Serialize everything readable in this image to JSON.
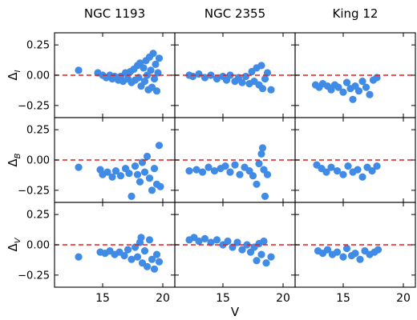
{
  "chart_data": {
    "type": "scatter",
    "layout": {
      "rows": 3,
      "cols": 3,
      "shared_x": true,
      "shared_y": true
    },
    "columns": [
      "NGC 1193",
      "NGC 2355",
      "King 12"
    ],
    "rows": [
      {
        "ylabel": "Δ_I",
        "sub": "I"
      },
      {
        "ylabel": "Δ_B",
        "sub": "B"
      },
      {
        "ylabel": "Δ_V",
        "sub": "V"
      }
    ],
    "xlabel": "V",
    "xlim": [
      11,
      21
    ],
    "ylim": [
      -0.35,
      0.35
    ],
    "xticks": [
      15,
      20
    ],
    "yticks": [
      -0.25,
      0.0,
      0.25
    ],
    "ytick_labels": [
      "−0.25",
      "0.00",
      "0.25"
    ],
    "marker_color": "#3f8be6",
    "reference_line": {
      "y": 0.0,
      "color": "#e8191a",
      "style": "dashed"
    },
    "grid": false,
    "panels": [
      {
        "row": 0,
        "col": 0,
        "column": "NGC 1193",
        "delta": "I",
        "points": [
          [
            13.0,
            0.04
          ],
          [
            14.6,
            0.02
          ],
          [
            15.0,
            0.0
          ],
          [
            15.3,
            -0.02
          ],
          [
            15.6,
            0.0
          ],
          [
            15.8,
            -0.03
          ],
          [
            16.0,
            -0.01
          ],
          [
            16.3,
            -0.04
          ],
          [
            16.5,
            -0.01
          ],
          [
            16.7,
            -0.05
          ],
          [
            16.9,
            0.02
          ],
          [
            17.1,
            -0.03
          ],
          [
            17.3,
            0.03
          ],
          [
            17.4,
            -0.06
          ],
          [
            17.6,
            0.05
          ],
          [
            17.7,
            -0.04
          ],
          [
            17.9,
            0.08
          ],
          [
            18.0,
            -0.02
          ],
          [
            18.1,
            0.1
          ],
          [
            18.2,
            -0.09
          ],
          [
            18.4,
            0.06
          ],
          [
            18.5,
            -0.05
          ],
          [
            18.6,
            0.12
          ],
          [
            18.7,
            0.0
          ],
          [
            18.8,
            -0.12
          ],
          [
            18.9,
            0.15
          ],
          [
            19.0,
            0.04
          ],
          [
            19.1,
            -0.1
          ],
          [
            19.2,
            0.18
          ],
          [
            19.3,
            -0.03
          ],
          [
            19.4,
            0.09
          ],
          [
            19.5,
            -0.13
          ],
          [
            19.6,
            0.02
          ],
          [
            19.7,
            0.14
          ]
        ]
      },
      {
        "row": 0,
        "col": 1,
        "column": "NGC 2355",
        "delta": "I",
        "points": [
          [
            12.2,
            0.0
          ],
          [
            12.5,
            -0.01
          ],
          [
            13.0,
            0.01
          ],
          [
            13.5,
            -0.02
          ],
          [
            14.0,
            0.0
          ],
          [
            14.5,
            -0.03
          ],
          [
            15.0,
            -0.01
          ],
          [
            15.3,
            -0.04
          ],
          [
            15.6,
            0.0
          ],
          [
            16.0,
            -0.05
          ],
          [
            16.3,
            -0.02
          ],
          [
            16.6,
            -0.06
          ],
          [
            16.9,
            -0.01
          ],
          [
            17.2,
            -0.07
          ],
          [
            17.4,
            0.03
          ],
          [
            17.6,
            -0.05
          ],
          [
            17.8,
            0.06
          ],
          [
            18.0,
            -0.08
          ],
          [
            18.2,
            0.08
          ],
          [
            18.3,
            -0.11
          ],
          [
            18.5,
            -0.03
          ],
          [
            18.7,
            0.02
          ],
          [
            19.0,
            -0.12
          ]
        ]
      },
      {
        "row": 0,
        "col": 2,
        "column": "King 12",
        "delta": "I",
        "points": [
          [
            12.7,
            -0.08
          ],
          [
            13.0,
            -0.1
          ],
          [
            13.3,
            -0.07
          ],
          [
            13.7,
            -0.09
          ],
          [
            14.0,
            -0.12
          ],
          [
            14.3,
            -0.08
          ],
          [
            14.6,
            -0.1
          ],
          [
            15.0,
            -0.14
          ],
          [
            15.3,
            -0.06
          ],
          [
            15.6,
            -0.11
          ],
          [
            15.8,
            -0.2
          ],
          [
            16.0,
            -0.09
          ],
          [
            16.3,
            -0.13
          ],
          [
            16.6,
            -0.05
          ],
          [
            16.9,
            -0.1
          ],
          [
            17.2,
            -0.16
          ],
          [
            17.5,
            -0.04
          ],
          [
            17.8,
            -0.02
          ]
        ]
      },
      {
        "row": 1,
        "col": 0,
        "column": "NGC 1193",
        "delta": "B",
        "points": [
          [
            13.0,
            -0.06
          ],
          [
            14.8,
            -0.08
          ],
          [
            15.0,
            -0.12
          ],
          [
            15.4,
            -0.1
          ],
          [
            15.8,
            -0.14
          ],
          [
            16.1,
            -0.09
          ],
          [
            16.5,
            -0.13
          ],
          [
            16.9,
            -0.07
          ],
          [
            17.2,
            -0.11
          ],
          [
            17.4,
            -0.3
          ],
          [
            17.7,
            -0.05
          ],
          [
            17.9,
            -0.12
          ],
          [
            18.1,
            -0.18
          ],
          [
            18.3,
            -0.02
          ],
          [
            18.5,
            -0.1
          ],
          [
            18.7,
            0.03
          ],
          [
            18.9,
            -0.15
          ],
          [
            19.1,
            -0.25
          ],
          [
            19.3,
            -0.07
          ],
          [
            19.5,
            -0.2
          ],
          [
            19.7,
            0.12
          ],
          [
            19.8,
            -0.22
          ]
        ]
      },
      {
        "row": 1,
        "col": 1,
        "column": "NGC 2355",
        "delta": "B",
        "points": [
          [
            12.2,
            -0.09
          ],
          [
            12.8,
            -0.08
          ],
          [
            13.3,
            -0.1
          ],
          [
            13.8,
            -0.06
          ],
          [
            14.3,
            -0.09
          ],
          [
            14.8,
            -0.07
          ],
          [
            15.2,
            -0.05
          ],
          [
            15.6,
            -0.1
          ],
          [
            16.0,
            -0.04
          ],
          [
            16.4,
            -0.12
          ],
          [
            16.8,
            -0.06
          ],
          [
            17.2,
            -0.09
          ],
          [
            17.5,
            -0.13
          ],
          [
            17.8,
            -0.2
          ],
          [
            18.0,
            -0.03
          ],
          [
            18.2,
            0.05
          ],
          [
            18.4,
            -0.08
          ],
          [
            18.5,
            -0.3
          ],
          [
            18.7,
            -0.12
          ],
          [
            18.3,
            0.1
          ]
        ]
      },
      {
        "row": 1,
        "col": 2,
        "column": "King 12",
        "delta": "B",
        "points": [
          [
            12.8,
            -0.04
          ],
          [
            13.2,
            -0.07
          ],
          [
            13.6,
            -0.1
          ],
          [
            14.0,
            -0.06
          ],
          [
            14.5,
            -0.09
          ],
          [
            15.0,
            -0.12
          ],
          [
            15.4,
            -0.05
          ],
          [
            15.8,
            -0.1
          ],
          [
            16.2,
            -0.08
          ],
          [
            16.6,
            -0.14
          ],
          [
            17.0,
            -0.06
          ],
          [
            17.4,
            -0.09
          ],
          [
            17.8,
            -0.05
          ]
        ]
      },
      {
        "row": 2,
        "col": 0,
        "column": "NGC 1193",
        "delta": "V",
        "points": [
          [
            13.0,
            -0.1
          ],
          [
            14.8,
            -0.06
          ],
          [
            15.2,
            -0.07
          ],
          [
            15.6,
            -0.05
          ],
          [
            16.0,
            -0.08
          ],
          [
            16.4,
            -0.06
          ],
          [
            16.8,
            -0.09
          ],
          [
            17.1,
            -0.04
          ],
          [
            17.4,
            -0.12
          ],
          [
            17.7,
            -0.02
          ],
          [
            17.9,
            -0.1
          ],
          [
            18.1,
            0.02
          ],
          [
            18.3,
            -0.15
          ],
          [
            18.5,
            -0.05
          ],
          [
            18.7,
            -0.18
          ],
          [
            18.9,
            0.04
          ],
          [
            19.1,
            -0.12
          ],
          [
            19.3,
            -0.2
          ],
          [
            19.5,
            -0.08
          ],
          [
            19.7,
            -0.14
          ],
          [
            18.2,
            0.06
          ]
        ]
      },
      {
        "row": 2,
        "col": 1,
        "column": "NGC 2355",
        "delta": "V",
        "points": [
          [
            12.2,
            0.04
          ],
          [
            12.6,
            0.06
          ],
          [
            13.0,
            0.03
          ],
          [
            13.5,
            0.05
          ],
          [
            14.0,
            0.02
          ],
          [
            14.5,
            0.04
          ],
          [
            15.0,
            0.0
          ],
          [
            15.4,
            0.03
          ],
          [
            15.8,
            -0.02
          ],
          [
            16.2,
            0.02
          ],
          [
            16.6,
            -0.04
          ],
          [
            17.0,
            0.0
          ],
          [
            17.3,
            -0.06
          ],
          [
            17.6,
            -0.02
          ],
          [
            17.8,
            -0.13
          ],
          [
            18.0,
            0.01
          ],
          [
            18.2,
            -0.08
          ],
          [
            18.4,
            0.03
          ],
          [
            18.6,
            -0.15
          ],
          [
            19.0,
            -0.1
          ]
        ]
      },
      {
        "row": 2,
        "col": 2,
        "column": "King 12",
        "delta": "V",
        "points": [
          [
            12.9,
            -0.05
          ],
          [
            13.3,
            -0.07
          ],
          [
            13.7,
            -0.04
          ],
          [
            14.1,
            -0.08
          ],
          [
            14.5,
            -0.06
          ],
          [
            15.0,
            -0.1
          ],
          [
            15.3,
            -0.03
          ],
          [
            15.7,
            -0.09
          ],
          [
            16.0,
            -0.07
          ],
          [
            16.4,
            -0.12
          ],
          [
            16.8,
            -0.05
          ],
          [
            17.2,
            -0.08
          ],
          [
            17.6,
            -0.06
          ],
          [
            17.9,
            -0.04
          ]
        ]
      }
    ]
  }
}
